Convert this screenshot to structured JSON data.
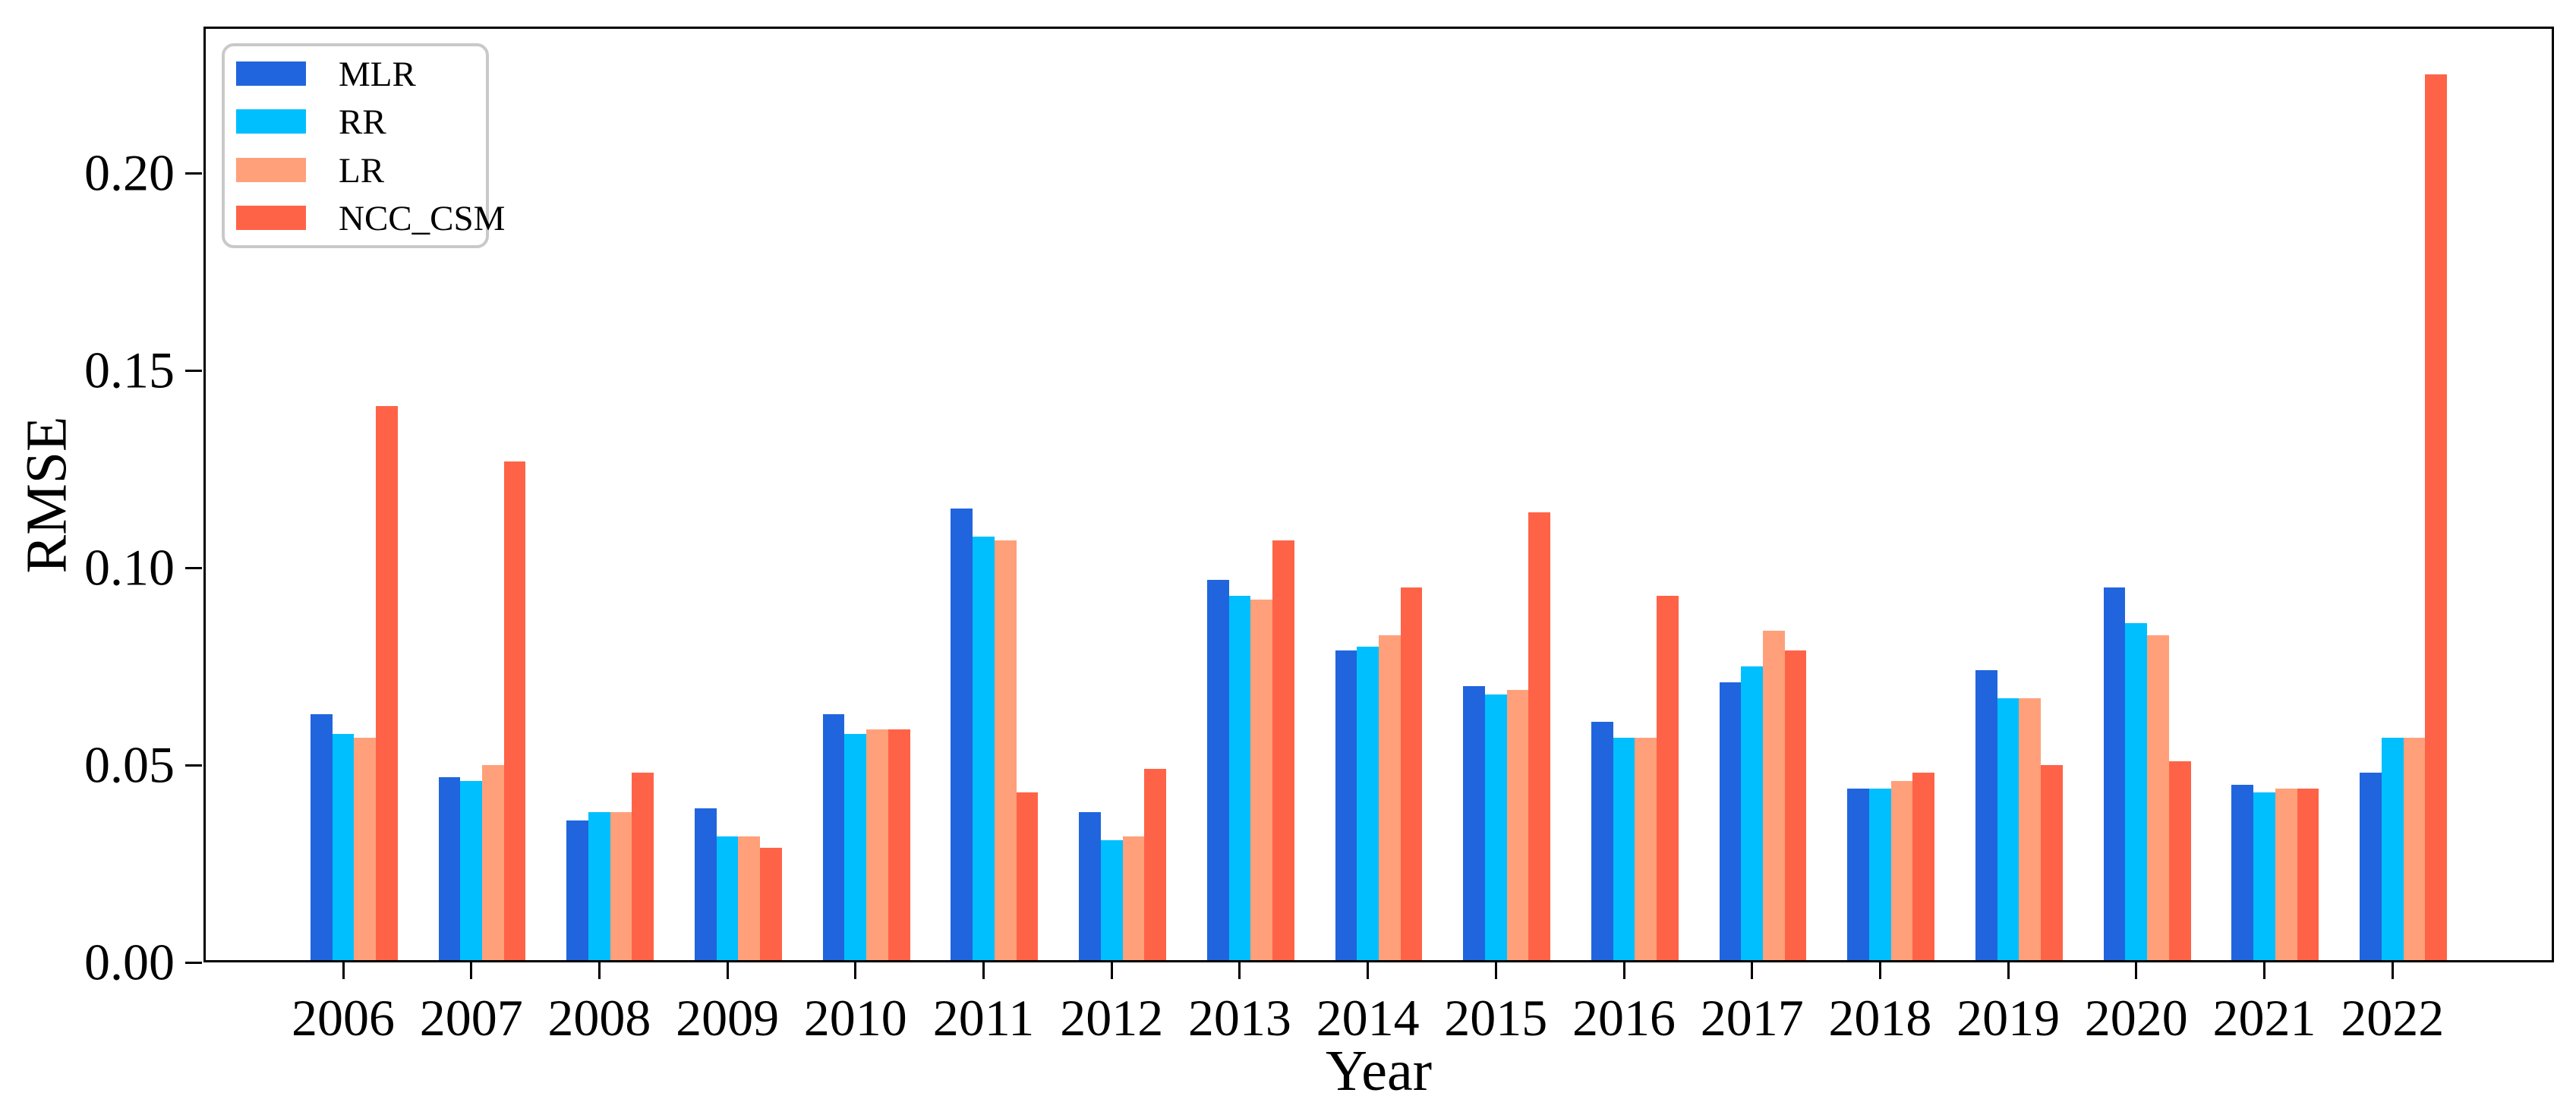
{
  "figure": {
    "background": "#ffffff"
  },
  "chart_data": {
    "type": "bar",
    "title": "",
    "xlabel": "Year",
    "ylabel": "RMSE",
    "categories": [
      "2006",
      "2007",
      "2008",
      "2009",
      "2010",
      "2011",
      "2012",
      "2013",
      "2014",
      "2015",
      "2016",
      "2017",
      "2018",
      "2019",
      "2020",
      "2021",
      "2022"
    ],
    "series": [
      {
        "name": "MLR",
        "color": "#2065dd",
        "values": [
          0.063,
          0.047,
          0.036,
          0.039,
          0.063,
          0.115,
          0.038,
          0.097,
          0.079,
          0.07,
          0.061,
          0.071,
          0.044,
          0.074,
          0.095,
          0.045,
          0.048
        ]
      },
      {
        "name": "RR",
        "color": "#00bfff",
        "values": [
          0.058,
          0.046,
          0.038,
          0.032,
          0.058,
          0.108,
          0.031,
          0.093,
          0.08,
          0.068,
          0.057,
          0.075,
          0.044,
          0.067,
          0.086,
          0.043,
          0.057
        ]
      },
      {
        "name": "LR",
        "color": "#ffa07a",
        "values": [
          0.057,
          0.05,
          0.038,
          0.032,
          0.059,
          0.107,
          0.032,
          0.092,
          0.083,
          0.069,
          0.057,
          0.084,
          0.046,
          0.067,
          0.083,
          0.044,
          0.057
        ]
      },
      {
        "name": "NCC_CSM",
        "color": "#ff6347",
        "values": [
          0.141,
          0.127,
          0.048,
          0.029,
          0.059,
          0.043,
          0.049,
          0.107,
          0.095,
          0.114,
          0.093,
          0.079,
          0.048,
          0.05,
          0.051,
          0.044,
          0.225
        ]
      }
    ],
    "ylim": [
      0,
      0.2372
    ],
    "yticks": [
      0.0,
      0.05,
      0.1,
      0.15,
      0.2
    ],
    "ytick_labels": [
      "0.00",
      "0.05",
      "0.10",
      "0.15",
      "0.20"
    ],
    "grid": false,
    "legend_position": "upper-left"
  }
}
